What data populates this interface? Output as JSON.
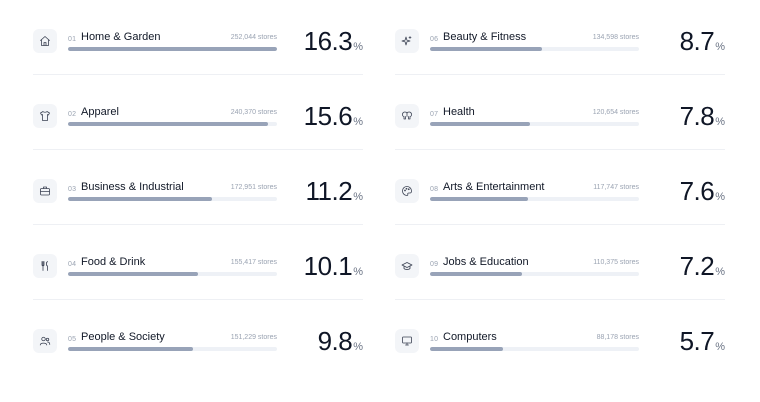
{
  "categories": [
    {
      "rank": "01",
      "name": "Home & Garden",
      "stores": "252,044 stores",
      "value": "16.3",
      "unit": "%",
      "share": 1.0,
      "icon": "home-icon"
    },
    {
      "rank": "02",
      "name": "Apparel",
      "stores": "240,370 stores",
      "value": "15.6",
      "unit": "%",
      "share": 0.957,
      "icon": "shirt-icon"
    },
    {
      "rank": "03",
      "name": "Business & Industrial",
      "stores": "172,951 stores",
      "value": "11.2",
      "unit": "%",
      "share": 0.687,
      "icon": "briefcase-icon"
    },
    {
      "rank": "04",
      "name": "Food & Drink",
      "stores": "155,417 stores",
      "value": "10.1",
      "unit": "%",
      "share": 0.62,
      "icon": "utensils-icon"
    },
    {
      "rank": "05",
      "name": "People & Society",
      "stores": "151,229 stores",
      "value": "9.8",
      "unit": "%",
      "share": 0.6,
      "icon": "users-icon"
    },
    {
      "rank": "06",
      "name": "Beauty & Fitness",
      "stores": "134,598 stores",
      "value": "8.7",
      "unit": "%",
      "share": 0.534,
      "icon": "sparkles-icon"
    },
    {
      "rank": "07",
      "name": "Health",
      "stores": "120,654 stores",
      "value": "7.8",
      "unit": "%",
      "share": 0.479,
      "icon": "health-icon"
    },
    {
      "rank": "08",
      "name": "Arts & Entertainment",
      "stores": "117,747 stores",
      "value": "7.6",
      "unit": "%",
      "share": 0.467,
      "icon": "palette-icon"
    },
    {
      "rank": "09",
      "name": "Jobs & Education",
      "stores": "110,375 stores",
      "value": "7.2",
      "unit": "%",
      "share": 0.44,
      "icon": "graduation-cap-icon"
    },
    {
      "rank": "10",
      "name": "Computers",
      "stores": "88,178 stores",
      "value": "5.7",
      "unit": "%",
      "share": 0.35,
      "icon": "monitor-icon"
    }
  ],
  "colors": {
    "bar_fill": "#98a3b8",
    "bar_track": "#eef1f6",
    "icon_bg": "#f3f5f8"
  }
}
